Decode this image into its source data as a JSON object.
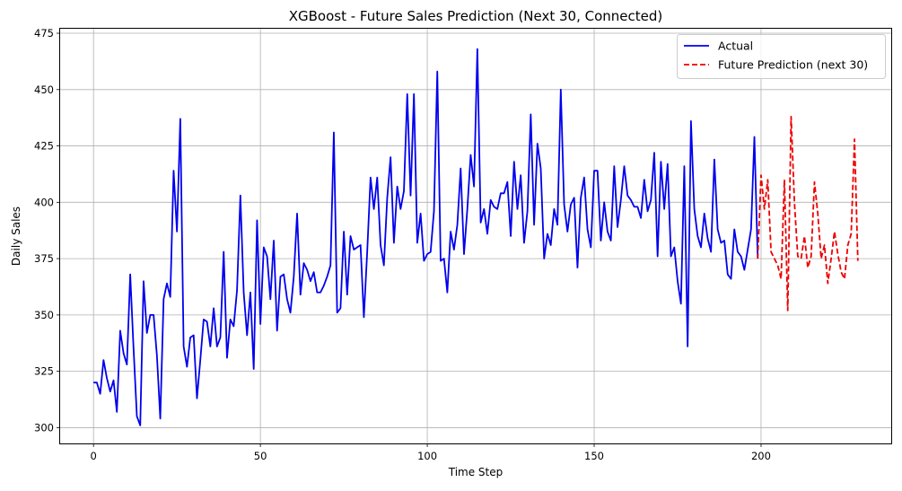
{
  "chart_data": {
    "type": "line",
    "title": "XGBoost - Future Sales Prediction (Next 30, Connected)",
    "xlabel": "Time Step",
    "ylabel": "Daily Sales",
    "xlim": [
      -10,
      239
    ],
    "ylim": [
      293,
      477
    ],
    "xticks": [
      0,
      50,
      100,
      150,
      200
    ],
    "yticks": [
      300,
      325,
      350,
      375,
      400,
      425,
      450,
      475
    ],
    "grid": true,
    "legend_position": "top-right",
    "colors": {
      "actual": "#0000ee",
      "prediction": "#ee0000",
      "grid": "#b0b0b0"
    },
    "series": [
      {
        "name": "Actual",
        "style": "solid",
        "x_start": 0,
        "values": [
          320,
          320,
          315,
          330,
          322,
          316,
          321,
          307,
          343,
          333,
          328,
          368,
          335,
          305,
          301,
          365,
          342,
          350,
          350,
          332,
          304,
          357,
          364,
          358,
          414,
          387,
          437,
          336,
          327,
          340,
          341,
          313,
          330,
          348,
          347,
          336,
          353,
          336,
          340,
          378,
          331,
          348,
          345,
          361,
          403,
          360,
          341,
          360,
          326,
          392,
          346,
          380,
          376,
          357,
          383,
          343,
          367,
          368,
          357,
          351,
          367,
          395,
          359,
          373,
          370,
          365,
          369,
          360,
          360,
          363,
          367,
          372,
          431,
          351,
          353,
          387,
          359,
          385,
          379,
          380,
          381,
          349,
          378,
          411,
          397,
          411,
          381,
          372,
          402,
          420,
          382,
          407,
          397,
          405,
          448,
          403,
          448,
          382,
          395,
          374,
          377,
          378,
          396,
          458,
          374,
          375,
          360,
          387,
          379,
          390,
          415,
          377,
          397,
          421,
          407,
          468,
          391,
          397,
          386,
          401,
          398,
          397,
          404,
          404,
          409,
          385,
          418,
          397,
          412,
          382,
          396,
          439,
          390,
          426,
          415,
          375,
          386,
          381,
          397,
          390,
          450,
          399,
          387,
          399,
          402,
          371,
          402,
          411,
          388,
          380,
          414,
          414,
          383,
          400,
          387,
          383,
          416,
          389,
          401,
          416,
          403,
          401,
          398,
          398,
          393,
          410,
          396,
          401,
          422,
          376,
          418,
          397,
          417,
          376,
          380,
          365,
          355,
          416,
          336,
          436,
          397,
          385,
          380,
          395,
          384,
          378,
          419,
          388,
          382,
          383,
          368,
          366,
          388,
          378,
          376,
          370,
          379,
          388,
          429,
          375
        ]
      },
      {
        "name": "Future Prediction (next 30)",
        "style": "dashed",
        "x_start": 199,
        "values": [
          375,
          412,
          397,
          410,
          378,
          375,
          372,
          366,
          410,
          352,
          438,
          400,
          376,
          375,
          385,
          371,
          376,
          409,
          395,
          375,
          381,
          364,
          375,
          387,
          377,
          369,
          366,
          381,
          386,
          428,
          374
        ]
      }
    ]
  }
}
